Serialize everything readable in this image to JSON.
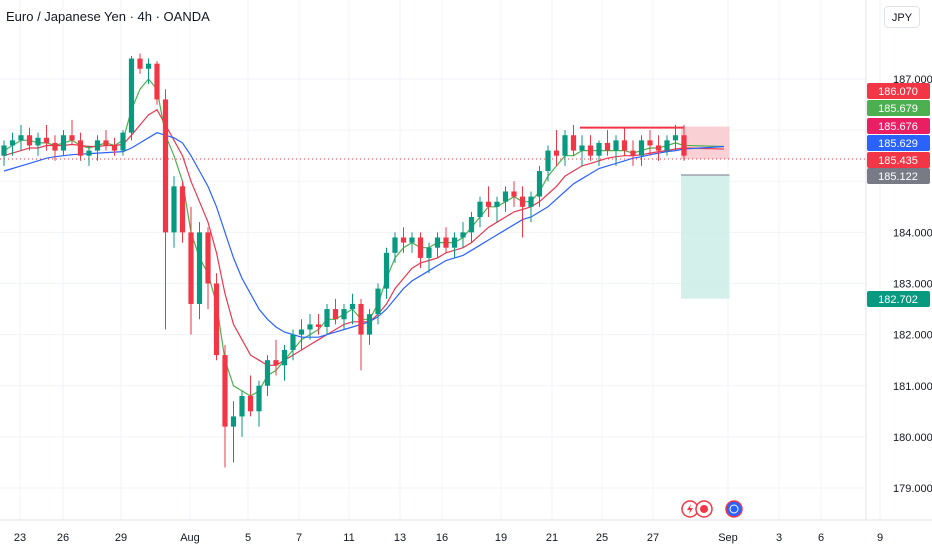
{
  "header": {
    "title": "Euro / Japanese Yen · 4h · OANDA",
    "currency_button": "JPY"
  },
  "colors": {
    "bull": "#089981",
    "bear": "#f23645",
    "ma_fast": "#4caf50",
    "ma_mid": "#e53950",
    "ma_slow": "#2962ff",
    "resistance": "#f23645",
    "risk_zone": "#f7c5c9",
    "reward_zone": "#cfeee9",
    "grid": "#f0f3fa",
    "axis_text": "#131722"
  },
  "chart_data": {
    "type": "candlestick",
    "symbol": "Euro / Japanese Yen",
    "timeframe": "4h",
    "source": "OANDA",
    "ylim": [
      178.2,
      188.0
    ],
    "y_ticks": [
      "179.000",
      "180.000",
      "181.000",
      "182.000",
      "183.000",
      "184.000",
      "187.000"
    ],
    "x_ticks": [
      "23",
      "26",
      "29",
      "Aug",
      "5",
      "7",
      "11",
      "13",
      "16",
      "19",
      "21",
      "25",
      "27",
      "Sep",
      "3",
      "6",
      "9"
    ],
    "price_labels": [
      {
        "value": "186.070",
        "color": "#f23645",
        "text_color": "#ffffff"
      },
      {
        "value": "185.679",
        "color": "#4caf50",
        "text_color": "#ffffff"
      },
      {
        "value": "185.676",
        "color": "#e91e63",
        "text_color": "#ffffff"
      },
      {
        "value": "185.629",
        "color": "#2962ff",
        "text_color": "#ffffff"
      },
      {
        "value": "185.435",
        "color": "#f23645",
        "text_color": "#ffffff"
      },
      {
        "value": "185.122",
        "color": "#787b86",
        "text_color": "#ffffff"
      },
      {
        "value": "182.702",
        "color": "#089981",
        "text_color": "#ffffff"
      }
    ],
    "candles": [
      [
        185.5,
        185.8,
        185.3,
        185.7
      ],
      [
        185.7,
        185.95,
        185.5,
        185.8
      ],
      [
        185.8,
        186.1,
        185.6,
        185.9
      ],
      [
        185.9,
        186.05,
        185.6,
        185.7
      ],
      [
        185.7,
        185.95,
        185.5,
        185.85
      ],
      [
        185.85,
        186.1,
        185.6,
        185.75
      ],
      [
        185.75,
        185.9,
        185.4,
        185.6
      ],
      [
        185.6,
        186.0,
        185.5,
        185.9
      ],
      [
        185.9,
        186.2,
        185.7,
        185.8
      ],
      [
        185.8,
        185.95,
        185.4,
        185.5
      ],
      [
        185.5,
        185.7,
        185.3,
        185.6
      ],
      [
        185.6,
        185.9,
        185.4,
        185.8
      ],
      [
        185.8,
        186.0,
        185.6,
        185.7
      ],
      [
        185.7,
        185.85,
        185.5,
        185.6
      ],
      [
        185.6,
        186.0,
        185.5,
        185.95
      ],
      [
        185.95,
        187.45,
        185.8,
        187.4
      ],
      [
        187.4,
        187.5,
        187.1,
        187.2
      ],
      [
        187.2,
        187.4,
        186.9,
        187.3
      ],
      [
        187.3,
        187.35,
        186.5,
        186.6
      ],
      [
        186.6,
        186.8,
        182.1,
        184.0
      ],
      [
        184.0,
        185.1,
        183.7,
        184.9
      ],
      [
        184.9,
        185.0,
        183.8,
        184.0
      ],
      [
        184.0,
        184.5,
        182.0,
        182.6
      ],
      [
        182.6,
        184.2,
        182.3,
        184.0
      ],
      [
        184.0,
        184.1,
        182.5,
        183.0
      ],
      [
        183.0,
        183.2,
        181.5,
        181.6
      ],
      [
        181.6,
        181.8,
        179.4,
        180.2
      ],
      [
        180.2,
        180.7,
        179.5,
        180.4
      ],
      [
        180.4,
        180.9,
        180.0,
        180.8
      ],
      [
        180.8,
        181.2,
        180.4,
        180.5
      ],
      [
        180.5,
        181.1,
        180.2,
        181.0
      ],
      [
        181.0,
        181.6,
        180.8,
        181.5
      ],
      [
        181.5,
        181.9,
        181.2,
        181.4
      ],
      [
        181.4,
        181.8,
        181.1,
        181.7
      ],
      [
        181.7,
        182.1,
        181.5,
        182.0
      ],
      [
        182.0,
        182.3,
        181.7,
        182.1
      ],
      [
        182.1,
        182.4,
        181.9,
        182.2
      ],
      [
        182.2,
        182.4,
        182.0,
        182.15
      ],
      [
        182.15,
        182.6,
        182.0,
        182.5
      ],
      [
        182.5,
        182.7,
        182.2,
        182.3
      ],
      [
        182.3,
        182.6,
        182.1,
        182.5
      ],
      [
        182.5,
        182.8,
        182.2,
        182.6
      ],
      [
        182.6,
        182.7,
        181.3,
        182.0
      ],
      [
        182.0,
        182.5,
        181.8,
        182.4
      ],
      [
        182.4,
        183.0,
        182.2,
        182.9
      ],
      [
        182.9,
        183.7,
        182.7,
        183.6
      ],
      [
        183.6,
        184.0,
        183.4,
        183.9
      ],
      [
        183.9,
        184.1,
        183.6,
        183.8
      ],
      [
        183.8,
        184.0,
        183.6,
        183.9
      ],
      [
        183.9,
        184.0,
        183.3,
        183.5
      ],
      [
        183.5,
        183.8,
        183.2,
        183.7
      ],
      [
        183.7,
        184.0,
        183.5,
        183.9
      ],
      [
        183.9,
        184.1,
        183.6,
        183.7
      ],
      [
        183.7,
        184.0,
        183.5,
        183.9
      ],
      [
        183.9,
        184.2,
        183.7,
        184.0
      ],
      [
        184.0,
        184.4,
        183.8,
        184.3
      ],
      [
        184.3,
        184.7,
        184.1,
        184.6
      ],
      [
        184.6,
        184.9,
        184.3,
        184.5
      ],
      [
        184.5,
        184.7,
        184.2,
        184.6
      ],
      [
        184.6,
        184.9,
        184.4,
        184.8
      ],
      [
        184.8,
        185.0,
        184.5,
        184.7
      ],
      [
        184.7,
        184.9,
        183.9,
        184.5
      ],
      [
        184.5,
        184.8,
        184.2,
        184.7
      ],
      [
        184.7,
        185.3,
        184.5,
        185.2
      ],
      [
        185.2,
        185.7,
        185.0,
        185.6
      ],
      [
        185.6,
        186.0,
        185.3,
        185.5
      ],
      [
        185.5,
        186.0,
        185.3,
        185.9
      ],
      [
        185.9,
        186.1,
        185.5,
        185.6
      ],
      [
        185.6,
        185.9,
        185.3,
        185.7
      ],
      [
        185.7,
        185.9,
        185.4,
        185.5
      ],
      [
        185.5,
        185.8,
        185.3,
        185.75
      ],
      [
        185.75,
        186.0,
        185.5,
        185.6
      ],
      [
        185.6,
        185.9,
        185.3,
        185.8
      ],
      [
        185.8,
        186.05,
        185.5,
        185.6
      ],
      [
        185.6,
        185.8,
        185.3,
        185.5
      ],
      [
        185.5,
        185.9,
        185.3,
        185.8
      ],
      [
        185.8,
        186.0,
        185.5,
        185.7
      ],
      [
        185.7,
        185.9,
        185.4,
        185.6
      ],
      [
        185.6,
        185.9,
        185.5,
        185.8
      ],
      [
        185.8,
        186.1,
        185.6,
        185.9
      ],
      [
        185.9,
        186.1,
        185.4,
        185.5
      ]
    ],
    "series": [
      {
        "name": "",
        "values": [
          185.6,
          185.7,
          185.8,
          185.8,
          185.75,
          185.75,
          185.7,
          185.75,
          185.8,
          185.7,
          185.65,
          185.7,
          185.75,
          185.7,
          185.8,
          186.4,
          186.8,
          187.0,
          186.8,
          185.9,
          185.5,
          185.0,
          184.0,
          183.5,
          183.2,
          182.6,
          181.5,
          181.0,
          180.9,
          180.8,
          180.9,
          181.2,
          181.3,
          181.5,
          181.7,
          181.9,
          182.0,
          182.1,
          182.3,
          182.3,
          182.4,
          182.5,
          182.3,
          182.3,
          182.6,
          183.1,
          183.5,
          183.7,
          183.8,
          183.7,
          183.7,
          183.8,
          183.8,
          183.8,
          183.9,
          184.1,
          184.3,
          184.5,
          184.5,
          184.6,
          184.7,
          184.6,
          184.6,
          184.8,
          185.1,
          185.3,
          185.5,
          185.5,
          185.6,
          185.6,
          185.6,
          185.6,
          185.6,
          185.6,
          185.55,
          185.6,
          185.65,
          185.65,
          185.7,
          185.75,
          185.7
        ],
        "color": "#4caf50"
      },
      {
        "name": "",
        "values": [
          185.5,
          185.55,
          185.6,
          185.65,
          185.65,
          185.7,
          185.7,
          185.7,
          185.72,
          185.7,
          185.68,
          185.68,
          185.7,
          185.7,
          185.72,
          185.9,
          186.1,
          186.3,
          186.4,
          186.1,
          185.8,
          185.5,
          185.0,
          184.6,
          184.2,
          183.6,
          182.8,
          182.2,
          181.9,
          181.6,
          181.5,
          181.4,
          181.4,
          181.5,
          181.6,
          181.7,
          181.8,
          181.9,
          182.0,
          182.1,
          182.2,
          182.25,
          182.25,
          182.25,
          182.4,
          182.6,
          182.9,
          183.1,
          183.3,
          183.4,
          183.45,
          183.5,
          183.6,
          183.65,
          183.7,
          183.8,
          183.95,
          184.1,
          184.2,
          184.3,
          184.4,
          184.45,
          184.5,
          184.6,
          184.75,
          184.9,
          185.1,
          185.2,
          185.3,
          185.35,
          185.4,
          185.45,
          185.48,
          185.5,
          185.5,
          185.52,
          185.55,
          185.58,
          185.6,
          185.63,
          185.65
        ],
        "color": "#e53950"
      },
      {
        "name": "",
        "values": [
          185.2,
          185.25,
          185.3,
          185.35,
          185.4,
          185.45,
          185.48,
          185.5,
          185.52,
          185.53,
          185.54,
          185.55,
          185.56,
          185.57,
          185.58,
          185.65,
          185.75,
          185.85,
          185.95,
          185.9,
          185.85,
          185.75,
          185.5,
          185.2,
          184.9,
          184.5,
          184.0,
          183.5,
          183.1,
          182.8,
          182.5,
          182.3,
          182.15,
          182.05,
          182.0,
          181.95,
          181.95,
          181.95,
          182.0,
          182.05,
          182.1,
          182.15,
          182.2,
          182.25,
          182.35,
          182.5,
          182.7,
          182.9,
          183.05,
          183.15,
          183.25,
          183.35,
          183.45,
          183.5,
          183.55,
          183.65,
          183.75,
          183.85,
          183.95,
          184.05,
          184.15,
          184.25,
          184.3,
          184.4,
          184.5,
          184.65,
          184.8,
          184.95,
          185.05,
          185.15,
          185.25,
          185.3,
          185.35,
          185.4,
          185.45,
          185.48,
          185.52,
          185.55,
          185.58,
          185.6,
          185.63
        ],
        "color": "#2962ff"
      }
    ],
    "resistance_line": {
      "start_index": 68,
      "end_index": 80,
      "value": 186.05
    },
    "position": {
      "entry": 185.435,
      "stop": 186.07,
      "target": 182.702,
      "start_index": 80,
      "end_index": 83
    },
    "current_price": 185.435
  }
}
